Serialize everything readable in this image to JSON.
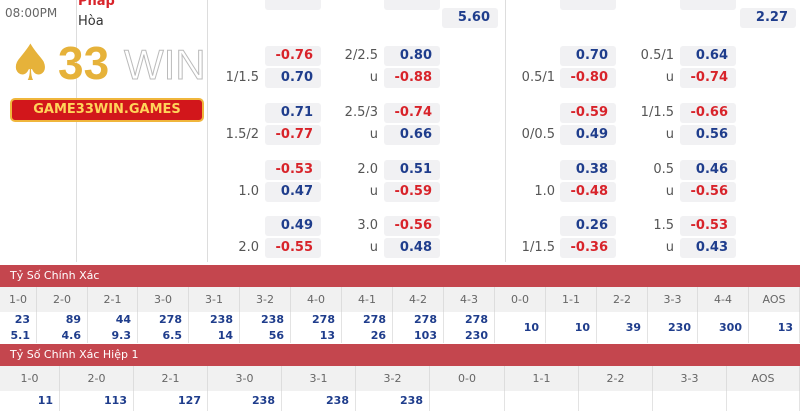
{
  "match": {
    "time": "08:00PM",
    "team": "Pháp",
    "draw": "Hòa"
  },
  "logo": {
    "text_number": "33",
    "text_win": "WIN",
    "banner": "GAME33WIN.GAMES"
  },
  "top_values": {
    "left": "5.60",
    "right": "2.27"
  },
  "left_market": [
    {
      "home": "-0.76",
      "ou_line": "2/2.5",
      "over": "0.80",
      "hdp": "1/1.5",
      "away": "0.70",
      "u": "u",
      "under": "-0.88"
    },
    {
      "home": "0.71",
      "ou_line": "2.5/3",
      "over": "-0.74",
      "hdp": "1.5/2",
      "away": "-0.77",
      "u": "u",
      "under": "0.66"
    },
    {
      "home": "-0.53",
      "ou_line": "2.0",
      "over": "0.51",
      "hdp": "1.0",
      "away": "0.47",
      "u": "u",
      "under": "-0.59"
    },
    {
      "home": "0.49",
      "ou_line": "3.0",
      "over": "-0.56",
      "hdp": "2.0",
      "away": "-0.55",
      "u": "u",
      "under": "0.48"
    }
  ],
  "right_market": [
    {
      "home": "0.70",
      "ou_line": "0.5/1",
      "over": "0.64",
      "hdp": "0.5/1",
      "away": "-0.80",
      "u": "u",
      "under": "-0.74"
    },
    {
      "home": "-0.59",
      "ou_line": "1/1.5",
      "over": "-0.66",
      "hdp": "0/0.5",
      "away": "0.49",
      "u": "u",
      "under": "0.56"
    },
    {
      "home": "0.38",
      "ou_line": "0.5",
      "over": "0.46",
      "hdp": "1.0",
      "away": "-0.48",
      "u": "u",
      "under": "-0.56"
    },
    {
      "home": "0.26",
      "ou_line": "1.5",
      "over": "-0.53",
      "hdp": "1/1.5",
      "away": "-0.36",
      "u": "u",
      "under": "0.43"
    }
  ],
  "correct_score": {
    "title": "Tỷ Số Chính Xác",
    "headers": [
      "1-0",
      "2-0",
      "2-1",
      "3-0",
      "3-1",
      "3-2",
      "4-0",
      "4-1",
      "4-2",
      "4-3",
      "0-0",
      "1-1",
      "2-2",
      "3-3",
      "4-4",
      "AOS"
    ],
    "home": [
      "23",
      "89",
      "44",
      "278",
      "238",
      "238",
      "278",
      "278",
      "278",
      "278",
      "10",
      "10",
      "39",
      "230",
      "300",
      "13"
    ],
    "away": [
      "5.1",
      "4.6",
      "9.3",
      "6.5",
      "14",
      "56",
      "13",
      "26",
      "103",
      "230",
      "",
      "",
      "",
      "",
      "",
      ""
    ]
  },
  "correct_score_h1": {
    "title": "Tỷ Số Chính Xác Hiệp 1",
    "headers": [
      "1-0",
      "2-0",
      "2-1",
      "3-0",
      "3-1",
      "3-2",
      "0-0",
      "1-1",
      "2-2",
      "3-3",
      "AOS"
    ],
    "home": [
      "11",
      "113",
      "127",
      "238",
      "238",
      "238",
      "",
      "",
      "",
      "",
      ""
    ]
  }
}
